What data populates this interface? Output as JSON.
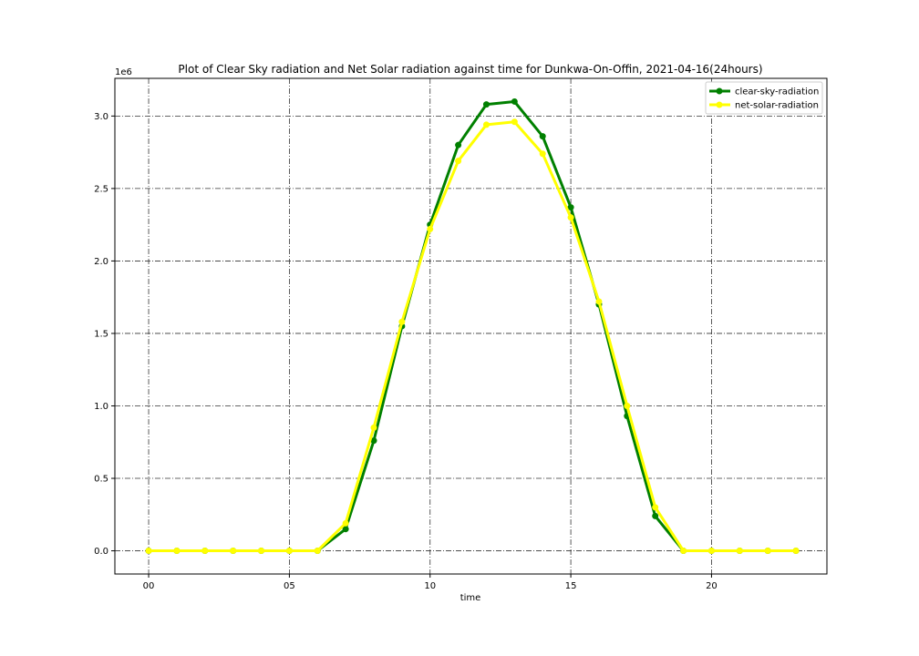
{
  "chart_data": {
    "type": "line",
    "title": "Plot of Clear Sky radiation and Net Solar radiation against time for Dunkwa-On-Offin, 2021-04-16(24hours)",
    "xlabel": "time",
    "ylabel": "",
    "y_offset_label": "1e6",
    "x": [
      0,
      1,
      2,
      3,
      4,
      5,
      6,
      7,
      8,
      9,
      10,
      11,
      12,
      13,
      14,
      15,
      16,
      17,
      18,
      19,
      20,
      21,
      22,
      23
    ],
    "x_ticks": [
      0,
      5,
      10,
      15,
      20
    ],
    "x_tick_labels": [
      "00",
      "05",
      "10",
      "15",
      "20"
    ],
    "xlim": [
      -1.2,
      24.1
    ],
    "y_ticks": [
      0.0,
      0.5,
      1.0,
      1.5,
      2.0,
      2.5,
      3.0
    ],
    "y_tick_labels": [
      "0.0",
      "0.5",
      "1.0",
      "1.5",
      "2.0",
      "2.5",
      "3.0"
    ],
    "ylim": [
      -0.16,
      3.26
    ],
    "grid": true,
    "legend_position": "top-right",
    "series": [
      {
        "name": "clear-sky-radiation",
        "color": "#008000",
        "values": [
          0,
          0,
          0,
          0,
          0,
          0,
          0,
          0.15,
          0.76,
          1.55,
          2.25,
          2.8,
          3.08,
          3.1,
          2.86,
          2.37,
          1.7,
          0.93,
          0.24,
          0,
          0,
          0,
          0,
          0
        ]
      },
      {
        "name": "net-solar-radiation",
        "color": "#ffff00",
        "values": [
          0,
          0,
          0,
          0,
          0,
          0,
          0,
          0.19,
          0.85,
          1.58,
          2.22,
          2.69,
          2.94,
          2.96,
          2.74,
          2.3,
          1.72,
          1.0,
          0.3,
          0,
          0,
          0,
          0,
          0
        ]
      }
    ]
  }
}
